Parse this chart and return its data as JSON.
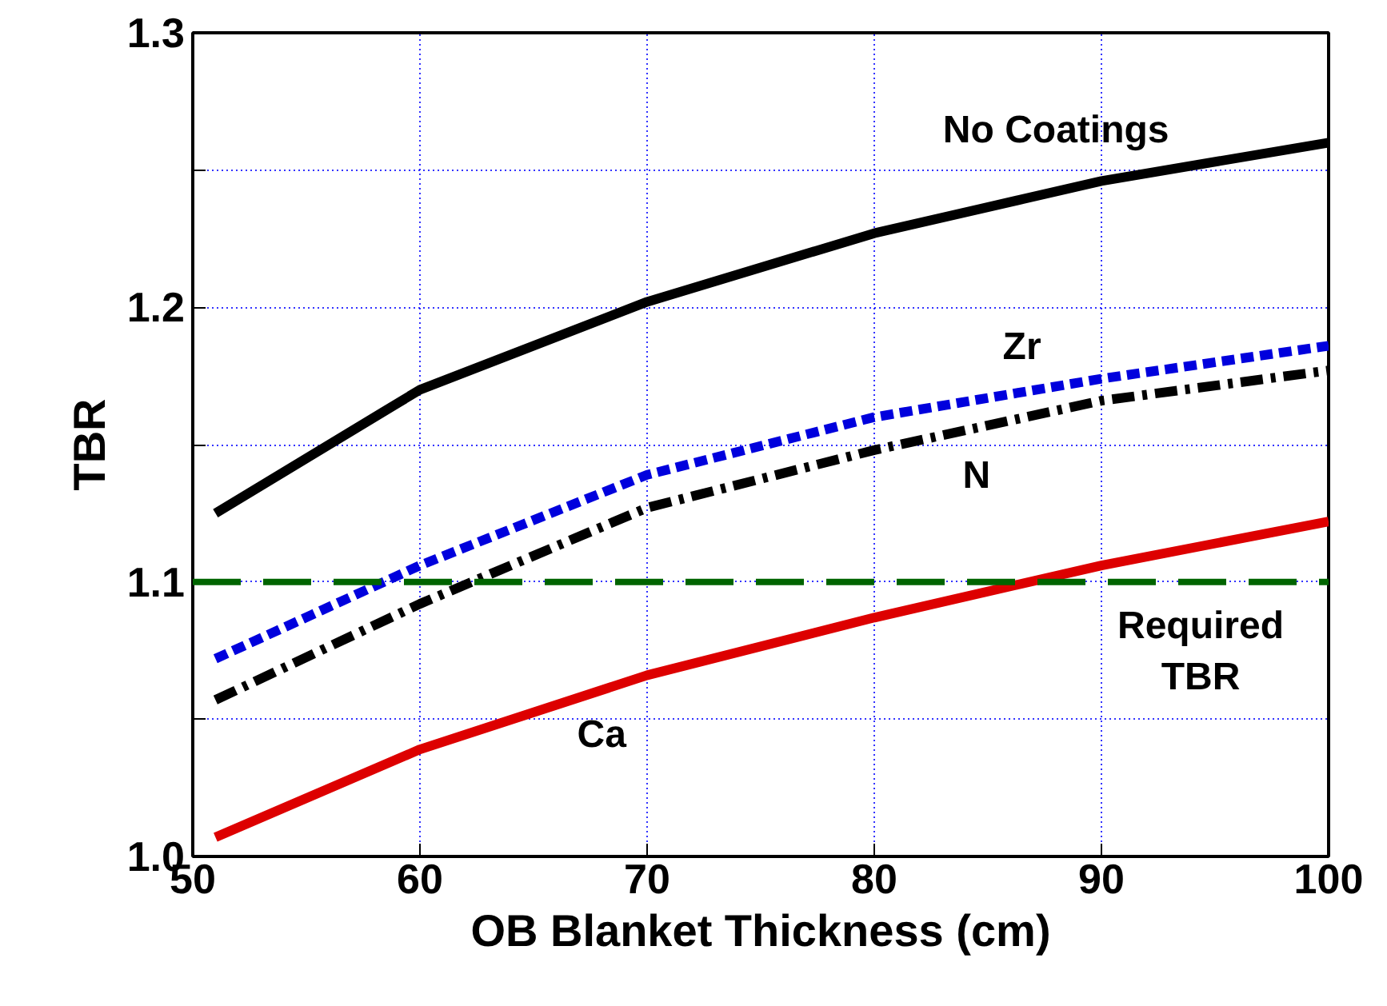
{
  "chart_data": {
    "type": "line",
    "xlabel": "OB Blanket Thickness (cm)",
    "ylabel": "TBR",
    "xlim": [
      50,
      100
    ],
    "xticks": [
      50,
      60,
      70,
      80,
      90,
      100
    ],
    "ylim": [
      1.0,
      1.3
    ],
    "yticks": [
      {
        "value": 1.0,
        "label": "1.0"
      },
      {
        "value": 1.05,
        "label": null
      },
      1.1,
      {
        "value": 1.15,
        "label": null
      },
      1.2,
      {
        "value": 1.25,
        "label": null
      },
      1.3
    ],
    "grid": true,
    "marker": "none",
    "series": [
      {
        "name": "No Coatings",
        "color": "#000000",
        "line_style": "solid",
        "x": [
          51,
          60,
          70,
          80,
          90,
          100
        ],
        "values": [
          1.125,
          1.17,
          1.202,
          1.227,
          1.246,
          1.26
        ]
      },
      {
        "name": "Zr",
        "color": "#0000dd",
        "line_style": "dashed",
        "x": [
          51,
          60,
          70,
          80,
          90,
          100
        ],
        "values": [
          1.072,
          1.106,
          1.139,
          1.16,
          1.174,
          1.186
        ]
      },
      {
        "name": "N",
        "color": "#000000",
        "line_style": "dashdot",
        "x": [
          51,
          60,
          70,
          80,
          90,
          100
        ],
        "values": [
          1.057,
          1.092,
          1.127,
          1.148,
          1.166,
          1.177
        ]
      },
      {
        "name": "Ca",
        "color": "#dd0000",
        "line_style": "solid",
        "x": [
          51,
          60,
          70,
          80,
          90,
          100
        ],
        "values": [
          1.007,
          1.039,
          1.066,
          1.087,
          1.106,
          1.122
        ]
      }
    ],
    "ref_lines": [
      {
        "axis": "y",
        "value": 1.1,
        "label": "Required\nTBR",
        "color": "#006400",
        "line_style": "dashed"
      }
    ]
  }
}
